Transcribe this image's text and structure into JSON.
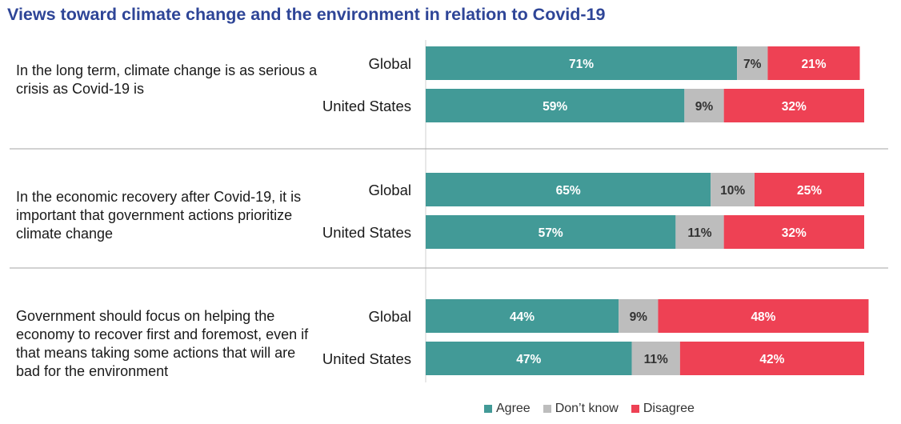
{
  "chart_data": {
    "type": "bar",
    "orientation": "horizontal",
    "stacked": true,
    "title": "Views toward climate change and the environment in relation to Covid-19",
    "xlim": [
      0,
      100
    ],
    "series": [
      {
        "name": "Agree",
        "color": "#429a97"
      },
      {
        "name": "Don’t know",
        "color": "#bdbdbd"
      },
      {
        "name": "Disagree",
        "color": "#ee4154"
      }
    ],
    "groups": [
      {
        "question": "In the long term, climate change is as serious a crisis as Covid-19 is",
        "rows": [
          {
            "label": "Global",
            "values": [
              71,
              7,
              21
            ],
            "labels": [
              "71%",
              "7%",
              "21%"
            ]
          },
          {
            "label": "United States",
            "values": [
              59,
              9,
              32
            ],
            "labels": [
              "59%",
              "9%",
              "32%"
            ]
          }
        ]
      },
      {
        "question": "In the economic recovery after Covid-19, it is important that government actions prioritize climate change",
        "rows": [
          {
            "label": "Global",
            "values": [
              65,
              10,
              25
            ],
            "labels": [
              "65%",
              "10%",
              "25%"
            ]
          },
          {
            "label": "United States",
            "values": [
              57,
              11,
              32
            ],
            "labels": [
              "57%",
              "11%",
              "32%"
            ]
          }
        ]
      },
      {
        "question": "Government should focus on helping the economy to recover first and foremost, even if that means taking some actions that will are bad for the environment",
        "rows": [
          {
            "label": "Global",
            "values": [
              44,
              9,
              48
            ],
            "labels": [
              "44%",
              "9%",
              "48%"
            ]
          },
          {
            "label": "United States",
            "values": [
              47,
              11,
              42
            ],
            "labels": [
              "47%",
              "11%",
              "42%"
            ]
          }
        ]
      }
    ],
    "legend": {
      "position": "bottom",
      "entries": [
        "Agree",
        "Don’t know",
        "Disagree"
      ]
    }
  }
}
